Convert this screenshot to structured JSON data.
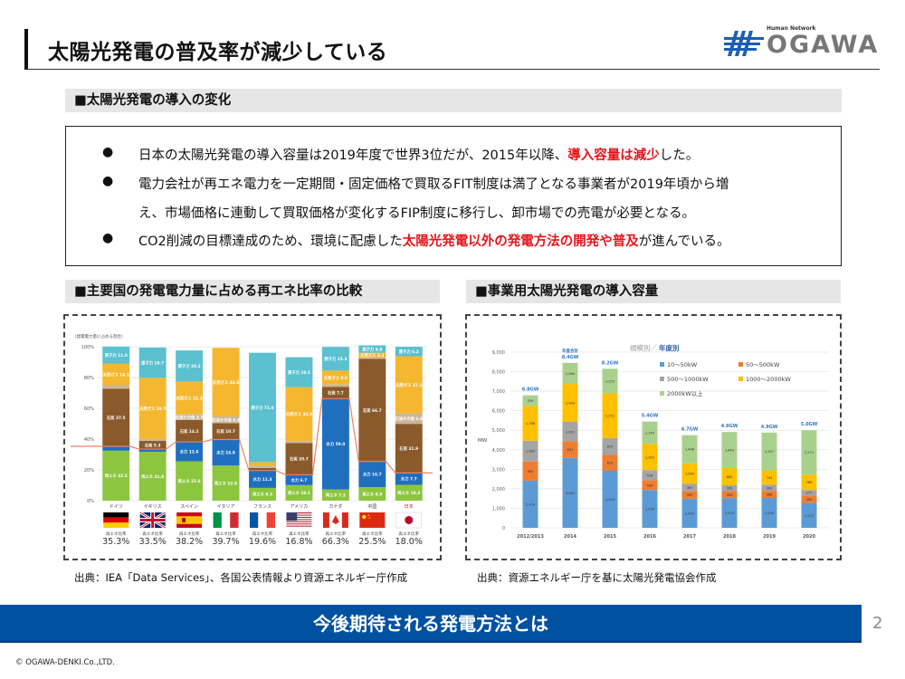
{
  "header": {
    "title": "太陽光発電の普及率が減少している",
    "logo_tagline": "Human Network",
    "logo_name": "OGAWA",
    "logo_color": "#1a5fb4"
  },
  "section1": {
    "heading": "■太陽光発電の導入の変化",
    "bullets": [
      {
        "dot": "●",
        "parts": [
          {
            "text": "日本の太陽光発電の導入容量は2019年度で世界3位だが、2015年以降、",
            "red": false
          },
          {
            "text": "導入容量は減少",
            "red": true
          },
          {
            "text": "した。",
            "red": false
          }
        ]
      },
      {
        "dot": "●",
        "parts": [
          {
            "text": "電力会社が再エネ電力を一定期間・固定価格で買取るFIT制度は満了となる事業者が2019年頃から増",
            "red": false
          }
        ]
      },
      {
        "dot": "",
        "parts": [
          {
            "text": "え、市場価格に連動して買取価格が変化するFIP制度に移行し、卸市場での売電が必要となる。",
            "red": false
          }
        ]
      },
      {
        "dot": "●",
        "parts": [
          {
            "text": "CO2削減の目標達成のため、環境に配慮した",
            "red": false
          },
          {
            "text": "太陽光発電以外の発電方法の開発や普及",
            "red": true
          },
          {
            "text": "が進んでいる。",
            "red": false
          }
        ]
      }
    ]
  },
  "section2": {
    "heading": "■主要国の発電電力量に占める再エネ比率の比較",
    "source": "出典：IEA「Data Services」、各国公表情報より資源エネルギー庁作成"
  },
  "section3": {
    "heading": "■事業用太陽光発電の導入容量",
    "source": "出典：資源エネルギー庁を基に太陽光発電協会作成"
  },
  "footer": {
    "banner": "今後期待される発電方法とは",
    "page_number": "2",
    "copyright": "© OGAWA-DENKI.Co.,LTD."
  },
  "chart_data": [
    {
      "type": "bar",
      "stacked": true,
      "title": "",
      "ylabel": "（発電電力量に占める割合）",
      "ylim": [
        0,
        100
      ],
      "yticks": [
        "0%",
        "20%",
        "40%",
        "60%",
        "80%",
        "100%"
      ],
      "categories": [
        "ドイツ",
        "イギリス",
        "スペイン",
        "イタリア",
        "フランス",
        "アメリカ",
        "カナダ",
        "中国",
        "日本"
      ],
      "highlight_category": "日本",
      "series": [
        {
          "name": "再エネ（水力除く）",
          "short": "再エネ",
          "color": "#8cc63f",
          "values": [
            32.5,
            31.8,
            25.6,
            22.8,
            8.3,
            10.1,
            7.3,
            8.8,
            10.3
          ]
        },
        {
          "name": "水力",
          "short": "水力",
          "color": "#1f6fbf",
          "values": [
            2.8,
            1.7,
            12.6,
            16.9,
            11.3,
            6.7,
            59.0,
            16.7,
            7.7
          ]
        },
        {
          "name": "石炭",
          "short": "石炭",
          "color": "#8b5a2b",
          "values": [
            37.5,
            5.3,
            14.2,
            10.7,
            1.6,
            20.7,
            7.7,
            66.7,
            31.9
          ]
        },
        {
          "name": "石油その他",
          "short": "石油その他",
          "color": "#c9b79c",
          "values": [
            2.2,
            1.3,
            3.7,
            4.3,
            1.6,
            1.3,
            1.5,
            0.7,
            6.8
          ]
        },
        {
          "name": "天然ガス",
          "short": "天然ガス",
          "color": "#f5b72f",
          "values": [
            14.1,
            39.7,
            21.3,
            44.6,
            2.3,
            34.9,
            9.0,
            3.2,
            37.1
          ]
        },
        {
          "name": "原子力",
          "short": "原子力",
          "color": "#5bc0d0",
          "values": [
            11.0,
            19.7,
            20.2,
            0.0,
            71.0,
            19.5,
            15.4,
            4.8,
            6.2
          ]
        }
      ],
      "renewable_ratio_label": "再エネ比率",
      "renewable_ratio": [
        "35.3%",
        "33.5%",
        "38.2%",
        "39.7%",
        "19.6%",
        "16.8%",
        "66.3%",
        "25.5%",
        "18.0%"
      ],
      "flags": [
        "de",
        "gb",
        "es",
        "it",
        "fr",
        "us",
        "ca",
        "cn",
        "jp"
      ],
      "line_color": "#f08060"
    },
    {
      "type": "bar",
      "stacked": true,
      "title": "規模別／年度別",
      "title_prefix": "規模別／",
      "title_emph": "年度別",
      "xlabel": "",
      "ylabel": "MW",
      "ylim": [
        0,
        9000
      ],
      "yticks": [
        "0",
        "1,000",
        "2,000",
        "3,000",
        "4,000",
        "5,000",
        "6,000",
        "7,000",
        "8,000",
        "9,000"
      ],
      "categories": [
        "2012/2013",
        "2014",
        "2015",
        "2016",
        "2017",
        "2018",
        "2019",
        "2020"
      ],
      "series": [
        {
          "name": "10〜50kW",
          "color": "#5b9bd5",
          "values": [
            2416,
            3581,
            2923,
            1936,
            1492,
            1523,
            1530,
            1273
          ]
        },
        {
          "name": "50〜500kW",
          "color": "#ed7d31",
          "values": [
            985,
            847,
            813,
            506,
            395,
            354,
            368,
            390
          ]
        },
        {
          "name": "500〜1000kW",
          "color": "#a5a5a5",
          "values": [
            1063,
            1001,
            870,
            516,
            367,
            306,
            303,
            277
          ]
        },
        {
          "name": "1000〜2000kW",
          "color": "#ffc000",
          "values": [
            1788,
            1943,
            2291,
            1342,
            1049,
            882,
            743,
            789
          ]
        },
        {
          "name": "2000kW以上",
          "color": "#a9d18e",
          "values": [
            539,
            1080,
            1255,
            1145,
            1446,
            1843,
            1937,
            2271
          ]
        }
      ],
      "totals": [
        "6.8GW",
        "8.4GW",
        "8.2GW",
        "5.4GW",
        "4.7GW",
        "4.9GW",
        "4.9GW",
        "5.0GW"
      ],
      "total_note": "年度合計",
      "total_color": "#2e75c6"
    }
  ]
}
